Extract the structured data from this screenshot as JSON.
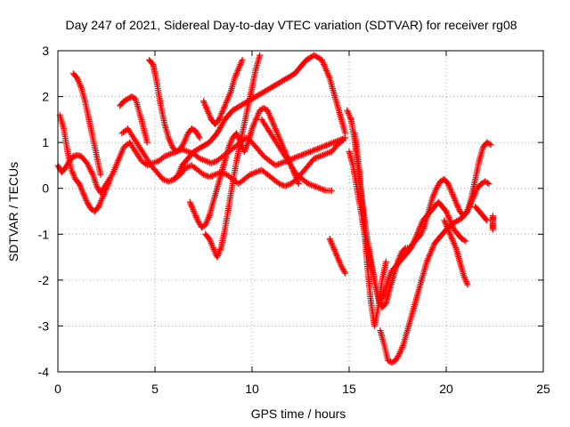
{
  "chart_data": {
    "type": "scatter",
    "title": "Day 247 of 2021, Sidereal Day-to-day VTEC variation (SDTVAR) for receiver rg08",
    "xlabel": "GPS time / hours",
    "ylabel": "SDTVAR / TECUs",
    "xlim": [
      0,
      25
    ],
    "ylim": [
      -4,
      3
    ],
    "x_ticks": [
      0,
      5,
      10,
      15,
      20,
      25
    ],
    "y_ticks": [
      -4,
      -3,
      -2,
      -1,
      0,
      1,
      2,
      3
    ],
    "grid": true,
    "marker": "+",
    "color": "#ff0000",
    "series": [
      {
        "x": [
          0.0,
          0.2,
          0.4,
          0.6,
          0.8,
          1.0,
          1.2,
          1.5,
          1.8,
          2.0,
          2.2,
          2.5,
          2.8,
          3.1,
          3.4,
          3.7,
          4.0,
          4.3,
          4.6,
          4.9,
          5.2,
          5.5,
          5.8,
          6.1,
          6.4,
          6.7,
          7.0,
          7.3,
          7.6,
          7.9,
          8.2,
          8.5,
          8.8,
          9.1,
          9.4,
          9.7,
          10.0,
          10.3,
          10.6,
          10.9,
          11.2,
          11.5,
          11.8,
          12.1,
          12.4,
          12.7,
          13.0,
          13.3,
          13.6,
          13.9,
          14.2,
          14.5,
          14.8
        ],
        "y": [
          0.5,
          0.35,
          0.45,
          0.6,
          0.7,
          0.72,
          0.7,
          0.55,
          0.3,
          0.05,
          -0.1,
          0.1,
          0.3,
          0.6,
          0.9,
          1.0,
          0.8,
          0.6,
          0.5,
          0.55,
          0.6,
          0.7,
          0.75,
          0.8,
          0.85,
          0.8,
          0.75,
          0.65,
          0.6,
          0.55,
          0.6,
          0.7,
          0.8,
          0.9,
          1.0,
          1.1,
          1.0,
          0.85,
          0.7,
          0.6,
          0.5,
          0.55,
          0.6,
          0.65,
          0.7,
          0.75,
          0.8,
          0.85,
          0.9,
          0.95,
          1.0,
          1.05,
          1.1
        ]
      },
      {
        "x": [
          0.1,
          0.3,
          0.5,
          0.7,
          0.9,
          1.1,
          1.3,
          1.5,
          1.7,
          1.9,
          2.1,
          2.3,
          2.5,
          2.7
        ],
        "y": [
          1.6,
          1.3,
          0.8,
          0.4,
          0.2,
          0.1,
          -0.1,
          -0.3,
          -0.45,
          -0.5,
          -0.4,
          -0.2,
          0.0,
          0.2
        ]
      },
      {
        "x": [
          0.8,
          1.0,
          1.2,
          1.4,
          1.6,
          1.8,
          2.0,
          2.2
        ],
        "y": [
          2.5,
          2.4,
          2.2,
          1.9,
          1.5,
          1.1,
          0.7,
          0.3
        ]
      },
      {
        "x": [
          3.2,
          3.4,
          3.6,
          3.8,
          4.0,
          4.3,
          4.6
        ],
        "y": [
          1.8,
          1.9,
          1.95,
          2.0,
          1.95,
          1.5,
          1.0
        ]
      },
      {
        "x": [
          3.3,
          3.6,
          3.9,
          4.2,
          4.5,
          4.8,
          5.1,
          5.4,
          5.7,
          6.0,
          6.3,
          6.6,
          6.9,
          7.2,
          7.5,
          7.8,
          8.1,
          8.4,
          8.7,
          9.0,
          9.3,
          9.6,
          9.9,
          10.2,
          10.5,
          10.8,
          11.1,
          11.4,
          11.7,
          12.0,
          12.3,
          12.6,
          12.9,
          13.2,
          13.5,
          13.8,
          14.1,
          14.4,
          14.7
        ],
        "y": [
          1.2,
          1.3,
          1.1,
          0.9,
          0.7,
          0.5,
          0.35,
          0.2,
          0.15,
          0.2,
          0.3,
          0.45,
          0.5,
          0.4,
          0.3,
          0.25,
          0.3,
          0.35,
          0.3,
          0.2,
          0.1,
          0.2,
          0.3,
          0.35,
          0.4,
          0.3,
          0.2,
          0.1,
          0.05,
          0.1,
          0.2,
          0.35,
          0.5,
          0.65,
          0.7,
          0.75,
          0.8,
          0.95,
          1.05
        ]
      },
      {
        "x": [
          4.7,
          4.9,
          5.1,
          5.3,
          5.5,
          5.7,
          5.9,
          6.1,
          6.3,
          6.5,
          6.7,
          6.9,
          7.1,
          7.3
        ],
        "y": [
          2.8,
          2.7,
          2.3,
          1.8,
          1.4,
          1.1,
          0.9,
          0.8,
          0.85,
          1.0,
          1.2,
          1.3,
          1.25,
          1.1
        ]
      },
      {
        "x": [
          6.0,
          6.2,
          6.4,
          6.6,
          6.8,
          7.0,
          7.2,
          7.4,
          7.6,
          7.8,
          8.0,
          8.2,
          8.4,
          8.6,
          8.8,
          9.0,
          9.2,
          9.4,
          9.6,
          9.8,
          10.0,
          10.2,
          10.4,
          10.6,
          10.8,
          11.0,
          11.2,
          11.4,
          11.6,
          11.8,
          12.0,
          12.2,
          12.4,
          12.6,
          12.8,
          13.0,
          13.2,
          13.4,
          13.6,
          13.8,
          14.0,
          14.2,
          14.4,
          14.6,
          14.8
        ],
        "y": [
          0.2,
          0.3,
          0.5,
          0.6,
          0.7,
          0.8,
          0.85,
          0.9,
          0.95,
          1.0,
          1.1,
          1.2,
          1.35,
          1.5,
          1.6,
          1.7,
          1.75,
          1.8,
          1.85,
          1.9,
          1.95,
          2.0,
          2.05,
          2.1,
          2.15,
          2.2,
          2.25,
          2.3,
          2.35,
          2.4,
          2.45,
          2.5,
          2.6,
          2.7,
          2.8,
          2.85,
          2.9,
          2.85,
          2.8,
          2.6,
          2.4,
          2.1,
          1.8,
          1.5,
          1.2
        ]
      },
      {
        "x": [
          6.8,
          7.0,
          7.2,
          7.4,
          7.6,
          7.8,
          8.0,
          8.2,
          8.4,
          8.6,
          8.8,
          9.0,
          9.2,
          9.4,
          9.6,
          9.8,
          10.0,
          10.2,
          10.4,
          10.6,
          10.8,
          11.0,
          11.2,
          11.4,
          11.6,
          11.8,
          12.0,
          12.2,
          12.4
        ],
        "y": [
          -0.3,
          -0.5,
          -0.7,
          -0.85,
          -0.8,
          -0.6,
          -0.3,
          0.0,
          0.3,
          0.6,
          0.9,
          1.1,
          1.2,
          1.0,
          0.8,
          1.0,
          1.3,
          1.5,
          1.7,
          1.75,
          1.7,
          1.5,
          1.3,
          1.1,
          0.9,
          0.7,
          0.5,
          0.3,
          0.1
        ]
      },
      {
        "x": [
          7.6,
          7.8,
          8.0,
          8.2,
          8.4,
          8.6,
          8.8,
          9.0,
          9.2,
          9.4,
          9.6,
          9.8,
          10.0,
          10.2,
          10.4
        ],
        "y": [
          -1.0,
          -1.1,
          -1.3,
          -1.5,
          -1.3,
          -0.9,
          -0.4,
          0.1,
          0.6,
          1.0,
          1.4,
          1.8,
          2.2,
          2.6,
          2.9
        ]
      },
      {
        "x": [
          7.5,
          7.7,
          7.9,
          8.1,
          8.3,
          8.5,
          8.7,
          8.9,
          9.1,
          9.3,
          9.5
        ],
        "y": [
          1.9,
          1.7,
          1.5,
          1.4,
          1.5,
          1.7,
          1.9,
          2.1,
          2.4,
          2.6,
          2.8
        ]
      },
      {
        "x": [
          10.5,
          10.8,
          11.1,
          11.4,
          11.7,
          12.0,
          12.3,
          12.6,
          12.9,
          13.2,
          13.5,
          13.8,
          14.1
        ],
        "y": [
          1.5,
          1.3,
          1.1,
          0.9,
          0.7,
          0.5,
          0.3,
          0.2,
          0.1,
          0.05,
          0.0,
          -0.05,
          -0.05
        ]
      },
      {
        "x": [
          14.0,
          14.2,
          14.4,
          14.6,
          14.8
        ],
        "y": [
          -1.1,
          -1.3,
          -1.5,
          -1.7,
          -1.85
        ]
      },
      {
        "x": [
          14.9,
          15.1,
          15.3,
          15.5,
          15.7,
          15.9,
          16.1,
          16.3,
          16.5,
          16.7,
          16.9,
          17.1,
          17.3,
          17.5,
          17.7,
          17.9,
          18.1,
          18.3,
          18.5,
          18.7,
          18.9,
          19.1,
          19.3,
          19.5,
          19.7,
          19.9,
          20.1,
          20.3,
          20.5,
          20.7,
          20.9,
          21.1,
          21.3,
          21.5,
          21.7,
          21.9,
          22.1,
          22.3
        ],
        "y": [
          1.7,
          1.5,
          1.0,
          0.3,
          -0.4,
          -1.0,
          -1.5,
          -2.0,
          -2.4,
          -2.6,
          -2.5,
          -2.2,
          -1.9,
          -1.6,
          -1.4,
          -1.3,
          -1.3,
          -1.2,
          -1.1,
          -1.0,
          -0.8,
          -0.5,
          -0.2,
          0.0,
          0.15,
          0.2,
          0.1,
          -0.1,
          -0.3,
          -0.5,
          -0.6,
          -0.5,
          -0.2,
          0.2,
          0.6,
          0.9,
          1.0,
          0.95
        ]
      },
      {
        "x": [
          15.0,
          15.2,
          15.4,
          15.6,
          15.8,
          16.0,
          16.2,
          16.4,
          16.6,
          16.8,
          17.0,
          17.2,
          17.4,
          17.6,
          17.8,
          18.0,
          18.2,
          18.4,
          18.6,
          18.8,
          19.0,
          19.2,
          19.4,
          19.6,
          19.8,
          20.0,
          20.2,
          20.4,
          20.6,
          20.8,
          21.0
        ],
        "y": [
          0.8,
          0.5,
          0.0,
          -0.5,
          -1.0,
          -1.4,
          -1.8,
          -2.2,
          -2.5,
          -2.3,
          -2.0,
          -1.8,
          -1.7,
          -1.6,
          -1.5,
          -1.4,
          -1.3,
          -1.1,
          -0.9,
          -0.7,
          -0.6,
          -0.5,
          -0.4,
          -0.3,
          -0.4,
          -0.5,
          -0.7,
          -0.9,
          -1.0,
          -1.1,
          -1.15
        ]
      },
      {
        "x": [
          15.3,
          15.5,
          15.7,
          15.9,
          16.1,
          16.3,
          16.5,
          16.7,
          16.9
        ],
        "y": [
          1.2,
          0.5,
          -0.5,
          -1.5,
          -2.4,
          -3.0,
          -2.6,
          -2.0,
          -1.6
        ]
      },
      {
        "x": [
          16.6,
          16.8,
          17.0,
          17.2,
          17.4,
          17.6,
          17.8,
          18.0,
          18.2,
          18.4,
          18.6,
          18.8,
          19.0,
          19.2,
          19.4,
          19.6,
          19.8,
          20.0,
          20.2,
          20.4,
          20.6,
          20.8,
          21.0,
          21.2,
          21.4,
          21.6,
          21.8,
          22.0,
          22.2
        ],
        "y": [
          -3.1,
          -3.4,
          -3.75,
          -3.8,
          -3.75,
          -3.6,
          -3.4,
          -3.1,
          -2.8,
          -2.5,
          -2.2,
          -1.9,
          -1.6,
          -1.4,
          -1.2,
          -1.1,
          -1.0,
          -0.9,
          -0.8,
          -0.75,
          -0.7,
          -0.65,
          -0.55,
          -0.4,
          -0.2,
          0.0,
          0.1,
          0.15,
          0.1
        ]
      },
      {
        "x": [
          19.9,
          20.1,
          20.3,
          20.5,
          20.7,
          20.9,
          21.1
        ],
        "y": [
          -0.7,
          -0.9,
          -1.1,
          -1.3,
          -1.6,
          -1.9,
          -2.1
        ]
      },
      {
        "x": [
          21.5,
          21.7,
          21.9,
          22.1
        ],
        "y": [
          -0.4,
          -0.5,
          -0.6,
          -0.7
        ]
      },
      {
        "x": [
          22.4,
          22.4,
          22.4,
          22.4,
          22.4
        ],
        "y": [
          -0.6,
          -0.7,
          -0.8,
          -0.9,
          -0.65
        ]
      }
    ]
  }
}
